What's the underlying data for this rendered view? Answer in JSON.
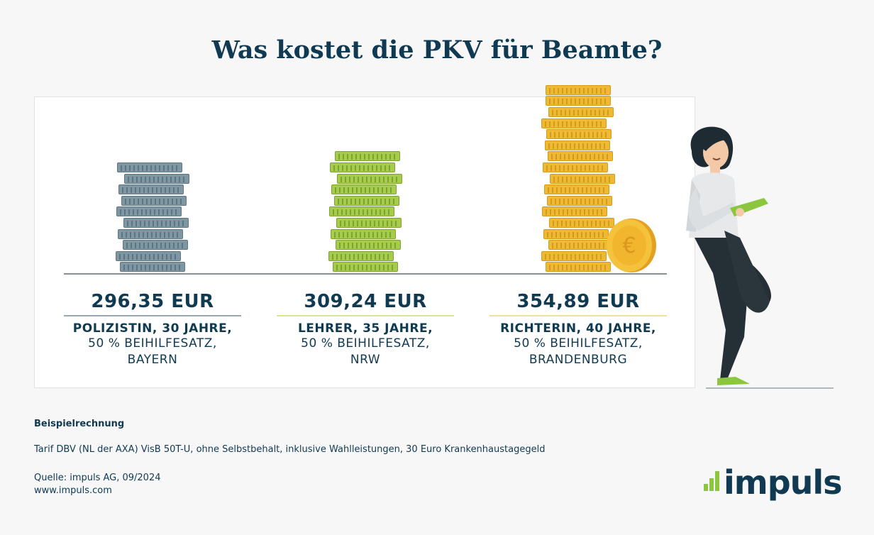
{
  "title": "Was kostet die PKV für Beamte?",
  "chart_data": {
    "type": "bar",
    "categories": [
      "Polizistin, 30 Jahre, 50 % Beihilfesatz, Bayern",
      "Lehrer, 35 Jahre, 50 % Beihilfesatz, NRW",
      "Richterin, 40 Jahre, 50 % Beihilfesatz, Brandenburg"
    ],
    "values": [
      296.35,
      309.24,
      354.89
    ],
    "unit": "EUR",
    "colors": [
      "#7e97a3",
      "#a6cc4b",
      "#f0b934"
    ],
    "underline_colors": [
      "#9aa6ad",
      "#d6e58f",
      "#f3e09a"
    ]
  },
  "columns": [
    {
      "amount": "296,35 EUR",
      "who": "POLIZISTIN, 30 JAHRE,",
      "line2": "50 % BEIHILFESATZ,",
      "line3": "BAYERN"
    },
    {
      "amount": "309,24 EUR",
      "who": "LEHRER, 35 JAHRE,",
      "line2": "50 % BEIHILFESATZ,",
      "line3": "NRW"
    },
    {
      "amount": "354,89 EUR",
      "who": "RICHTERIN, 40 JAHRE,",
      "line2": "50 % BEIHILFESATZ,",
      "line3": "BRANDENBURG"
    }
  ],
  "coin_symbol": "€",
  "footer": {
    "heading": "Beispielrechnung",
    "tariff": "Tarif DBV (NL der AXA) VisB 50T-U, ohne Selbstbehalt, inklusive Wahlleistungen, 30 Euro Krankenhaustagegeld",
    "source": "Quelle: impuls AG, 09/2024",
    "website": "www.impuls.com"
  },
  "logo": {
    "text": "impuls",
    "accent": "#8cc63f"
  }
}
